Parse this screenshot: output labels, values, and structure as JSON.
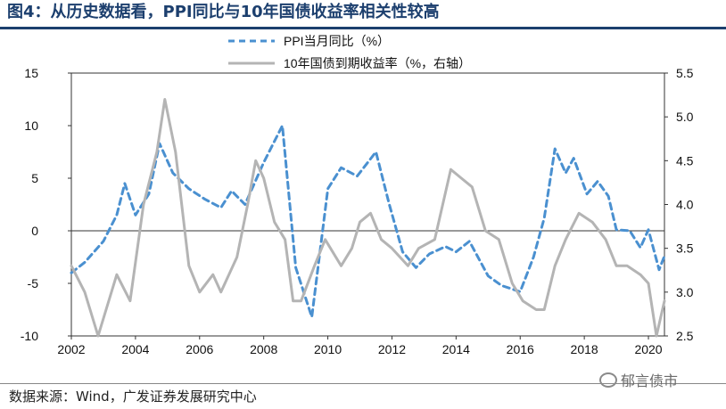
{
  "header": {
    "title": "图4：从历史数据看，PPI同比与10年国债收益率相关性较高"
  },
  "footer": {
    "source": "数据来源：Wind，广发证券发展研究中心",
    "watermark": "郁言债市"
  },
  "colors": {
    "title": "#1c3f6e",
    "ppi": "#4a90d0",
    "yield": "#b4b4b4",
    "axis": "#333333"
  },
  "chart_data": {
    "type": "line",
    "x_ticks": [
      "2002",
      "2004",
      "2006",
      "2008",
      "2010",
      "2012",
      "2014",
      "2016",
      "2018",
      "2020"
    ],
    "y_left": {
      "ticks": [
        "15",
        "10",
        "5",
        "0",
        "-5",
        "-10"
      ],
      "ylim": [
        -10,
        15
      ]
    },
    "y_right": {
      "ticks": [
        "5.5",
        "5.0",
        "4.5",
        "4.0",
        "3.5",
        "3.0",
        "2.5"
      ],
      "ylim": [
        2.5,
        5.5
      ]
    },
    "xlim": [
      "2002-01",
      "2020-07"
    ],
    "legend_position": "top-center",
    "series": [
      {
        "name": "PPI当月同比（%）",
        "axis": "left",
        "style": "dashed",
        "x": [
          "2002-01",
          "2002-06",
          "2003-01",
          "2003-06",
          "2003-09",
          "2004-01",
          "2004-06",
          "2004-10",
          "2005-03",
          "2005-09",
          "2006-03",
          "2006-09",
          "2007-01",
          "2007-06",
          "2008-01",
          "2008-08",
          "2009-01",
          "2009-07",
          "2010-01",
          "2010-06",
          "2010-12",
          "2011-07",
          "2011-12",
          "2012-05",
          "2012-10",
          "2013-03",
          "2013-09",
          "2014-01",
          "2014-06",
          "2015-01",
          "2015-06",
          "2016-01",
          "2016-06",
          "2016-10",
          "2017-02",
          "2017-06",
          "2017-09",
          "2018-02",
          "2018-06",
          "2018-10",
          "2019-01",
          "2019-06",
          "2019-10",
          "2020-01",
          "2020-05",
          "2020-07"
        ],
        "y": [
          -4.0,
          -3.0,
          -1.0,
          1.5,
          4.5,
          1.5,
          3.5,
          8.3,
          5.5,
          4.0,
          3.0,
          2.2,
          3.8,
          2.5,
          6.5,
          10.0,
          -3.5,
          -8.2,
          4.0,
          6.0,
          5.2,
          7.5,
          2.5,
          -2.0,
          -3.5,
          -2.2,
          -1.5,
          -2.0,
          -1.0,
          -4.3,
          -5.2,
          -5.8,
          -2.5,
          1.2,
          7.8,
          5.5,
          6.9,
          3.5,
          4.7,
          3.3,
          0.1,
          0.0,
          -1.6,
          0.1,
          -3.7,
          -2.4
        ]
      },
      {
        "name": "10年国债到期收益率（%，右轴）",
        "axis": "right",
        "style": "solid",
        "x": [
          "2002-01",
          "2002-06",
          "2002-11",
          "2003-06",
          "2003-11",
          "2004-04",
          "2004-09",
          "2004-12",
          "2005-04",
          "2005-09",
          "2006-01",
          "2006-06",
          "2006-09",
          "2007-03",
          "2007-07",
          "2007-10",
          "2008-01",
          "2008-05",
          "2008-09",
          "2008-12",
          "2009-03",
          "2009-08",
          "2009-12",
          "2010-06",
          "2010-10",
          "2011-01",
          "2011-05",
          "2011-09",
          "2012-01",
          "2012-07",
          "2012-11",
          "2013-05",
          "2013-11",
          "2014-03",
          "2014-07",
          "2014-12",
          "2015-05",
          "2015-10",
          "2016-02",
          "2016-07",
          "2016-10",
          "2017-02",
          "2017-06",
          "2017-11",
          "2018-04",
          "2018-09",
          "2019-01",
          "2019-05",
          "2019-10",
          "2020-01",
          "2020-04",
          "2020-07"
        ],
        "y": [
          3.3,
          3.0,
          2.5,
          3.2,
          2.9,
          4.0,
          4.6,
          5.2,
          4.6,
          3.3,
          3.0,
          3.2,
          3.0,
          3.4,
          4.0,
          4.5,
          4.3,
          3.8,
          3.6,
          2.9,
          2.9,
          3.3,
          3.6,
          3.3,
          3.5,
          3.8,
          3.9,
          3.6,
          3.5,
          3.3,
          3.5,
          3.6,
          4.4,
          4.3,
          4.2,
          3.7,
          3.6,
          3.1,
          2.9,
          2.8,
          2.8,
          3.3,
          3.6,
          3.9,
          3.8,
          3.6,
          3.3,
          3.3,
          3.2,
          3.1,
          2.5,
          2.9
        ]
      }
    ]
  }
}
